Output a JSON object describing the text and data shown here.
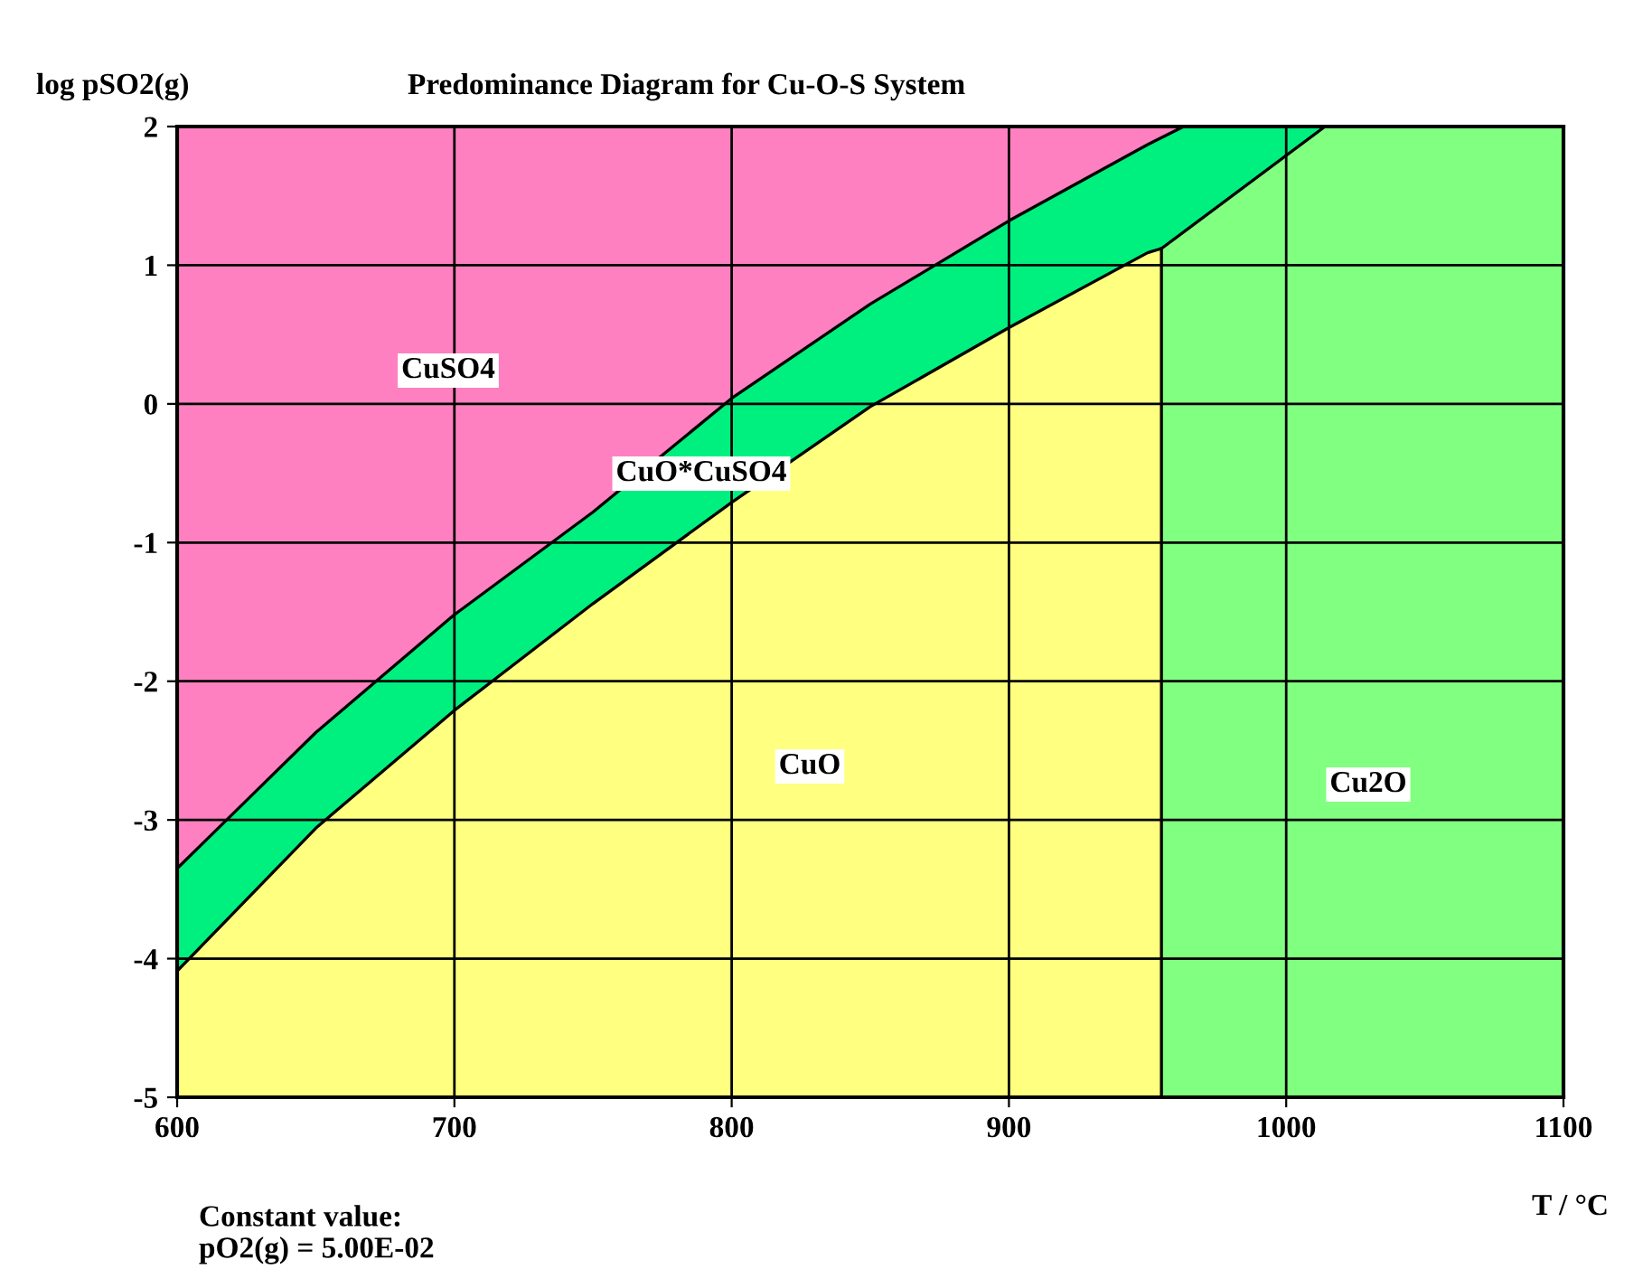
{
  "chart_data": {
    "type": "line",
    "title": "Predominance Diagram for Cu-O-S System",
    "xlabel": "T / °C",
    "ylabel": "log pSO2(g)",
    "xlim": [
      600,
      1100
    ],
    "ylim": [
      -5,
      2
    ],
    "xticks": [
      600,
      700,
      800,
      900,
      1000,
      1100
    ],
    "yticks": [
      -5,
      -4,
      -3,
      -2,
      -1,
      0,
      1,
      2
    ],
    "grid": true,
    "bands": [
      {
        "axis": "y",
        "from": -5,
        "to": 2,
        "color": "#ff80c0"
      }
    ],
    "series": [
      {
        "color": "#000000",
        "x": [
          600,
          650,
          700,
          750,
          800,
          850,
          900,
          950,
          963
        ],
        "values": [
          -3.35,
          -2.37,
          -1.52,
          -0.78,
          0.04,
          0.72,
          1.32,
          1.87,
          2
        ]
      },
      {
        "color": "#000000",
        "x": [
          600,
          650,
          700,
          750,
          800,
          850,
          900,
          950,
          955,
          1014
        ],
        "values": [
          -4.09,
          -3.06,
          -2.21,
          -1.44,
          -0.71,
          -0.02,
          0.55,
          1.09,
          1.12,
          2
        ]
      },
      {
        "color": "#000000",
        "x": [
          955,
          955
        ],
        "values": [
          -5,
          1.12
        ]
      }
    ],
    "annotations": [
      "CuSO4",
      "CuO*CuSO4",
      "CuO",
      "Cu2O",
      "Constant value:\npO2(g) = 5.00E-02"
    ]
  }
}
